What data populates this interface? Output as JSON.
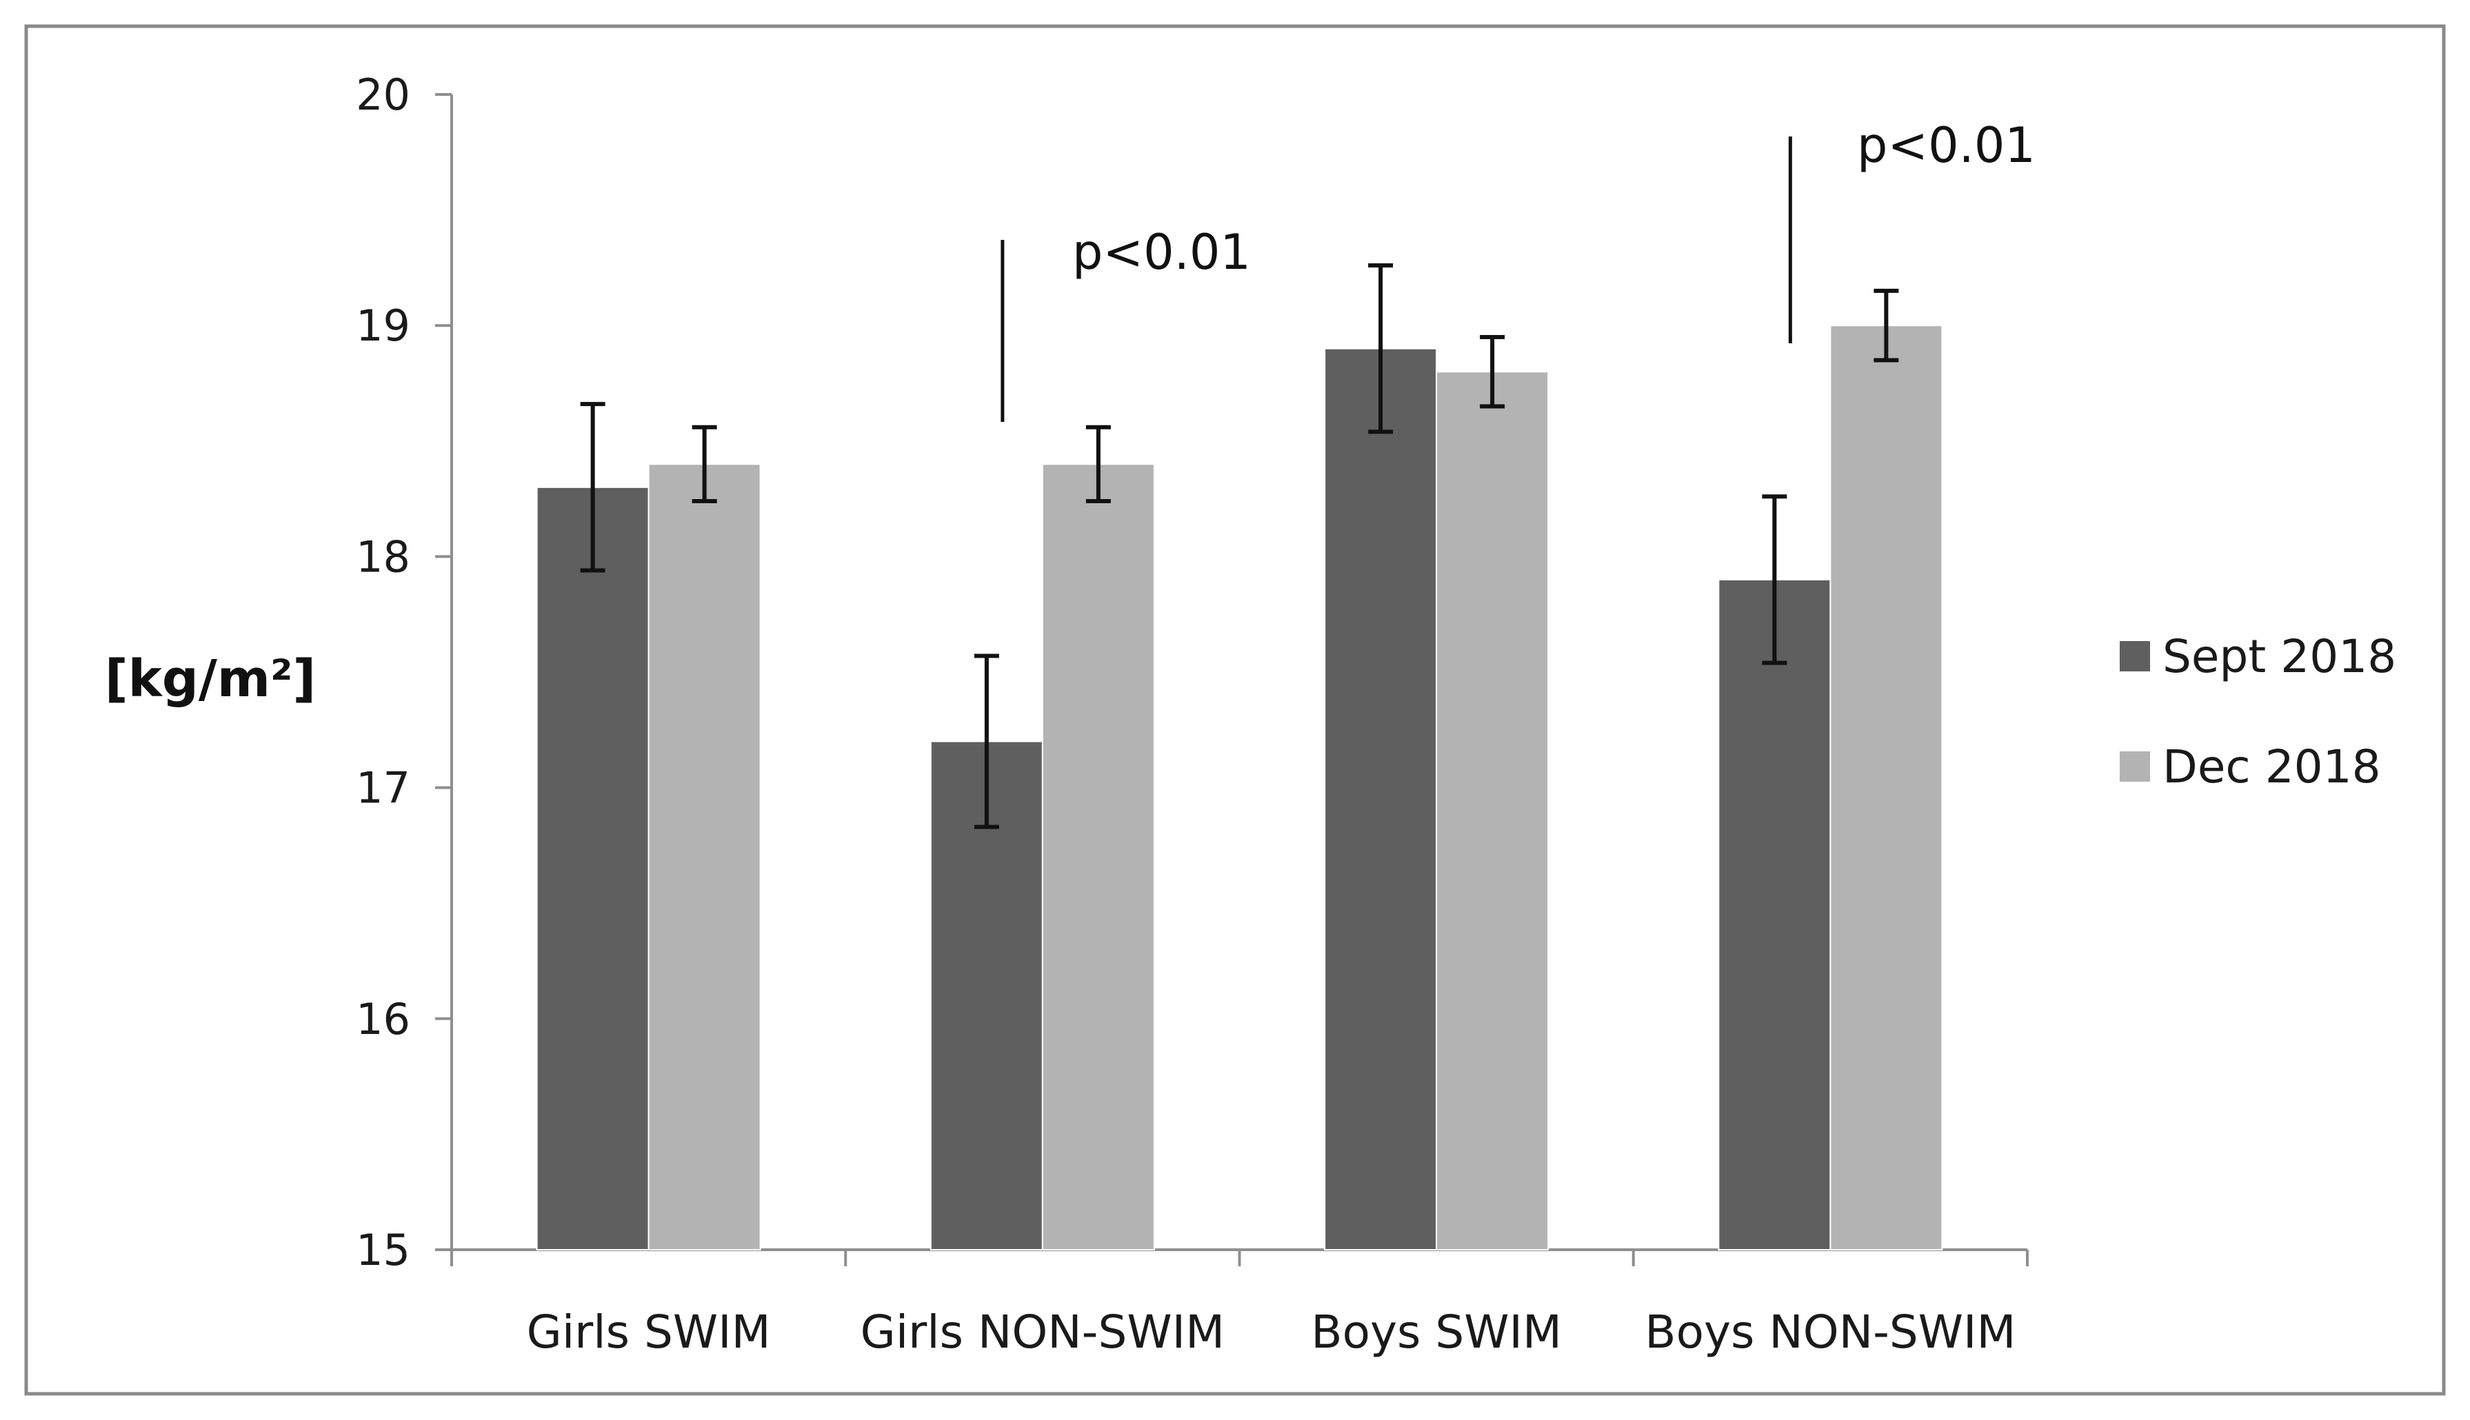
{
  "chart_data": {
    "type": "bar",
    "title": "",
    "xlabel": "",
    "ylabel": "[kg/m²]",
    "ylim": [
      15,
      20
    ],
    "yticks": [
      15,
      16,
      17,
      18,
      19,
      20
    ],
    "grid": false,
    "legend_position": "right",
    "categories": [
      "Girls SWIM",
      "Girls NON-SWIM",
      "Boys SWIM",
      "Boys NON-SWIM"
    ],
    "series": [
      {
        "name": "Sept 2018",
        "color": "#5f5f5f",
        "values": [
          18.3,
          17.2,
          18.9,
          17.9
        ],
        "errors": [
          0.36,
          0.37,
          0.36,
          0.36
        ]
      },
      {
        "name": "Dec 2018",
        "color": "#b3b3b3",
        "values": [
          18.4,
          18.4,
          18.8,
          19.0
        ],
        "errors": [
          0.16,
          0.16,
          0.15,
          0.15
        ]
      }
    ],
    "annotations": [
      {
        "category": "Girls NON-SWIM",
        "text": "p<0.01"
      },
      {
        "category": "Boys NON-SWIM",
        "text": "p<0.01"
      }
    ]
  }
}
